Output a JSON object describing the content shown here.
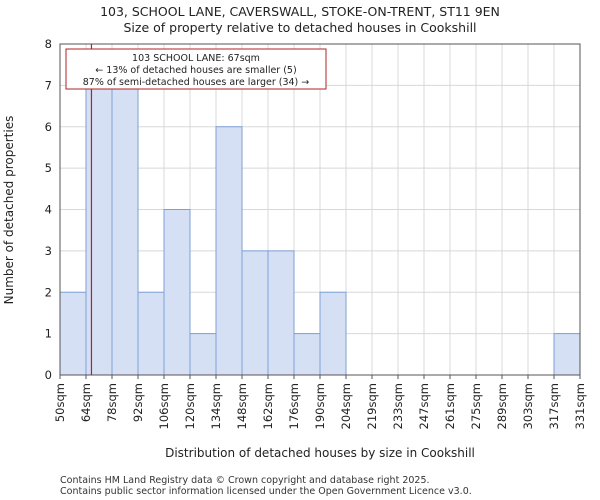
{
  "chart_data": {
    "type": "bar",
    "title": "103, SCHOOL LANE, CAVERSWALL, STOKE-ON-TRENT, ST11 9EN",
    "subtitle": "Size of property relative to detached houses in Cookshill",
    "xlabel": "Distribution of detached houses by size in Cookshill",
    "ylabel": "Number of detached properties",
    "tick_labels": [
      "50sqm",
      "64sqm",
      "78sqm",
      "92sqm",
      "106sqm",
      "120sqm",
      "134sqm",
      "148sqm",
      "162sqm",
      "176sqm",
      "190sqm",
      "204sqm",
      "219sqm",
      "233sqm",
      "247sqm",
      "261sqm",
      "275sqm",
      "289sqm",
      "303sqm",
      "317sqm",
      "331sqm"
    ],
    "values": [
      2,
      7,
      7,
      2,
      4,
      1,
      6,
      3,
      3,
      1,
      2,
      0,
      0,
      0,
      0,
      0,
      0,
      0,
      0,
      1
    ],
    "ylim": [
      0,
      8
    ],
    "yticks": [
      0,
      1,
      2,
      3,
      4,
      5,
      6,
      7,
      8
    ],
    "grid": true,
    "bar_color": "#d6e0f5",
    "bar_edge_color": "#7f9fd6",
    "marker_color": "#b22222",
    "marker_value_sqm": 67,
    "annotation": {
      "line1": "103 SCHOOL LANE: 67sqm",
      "line2": "← 13% of detached houses are smaller (5)",
      "line3": "87% of semi-detached houses are larger (34) →"
    }
  },
  "footer": {
    "line1": "Contains HM Land Registry data © Crown copyright and database right 2025.",
    "line2": "Contains public sector information licensed under the Open Government Licence v3.0."
  }
}
